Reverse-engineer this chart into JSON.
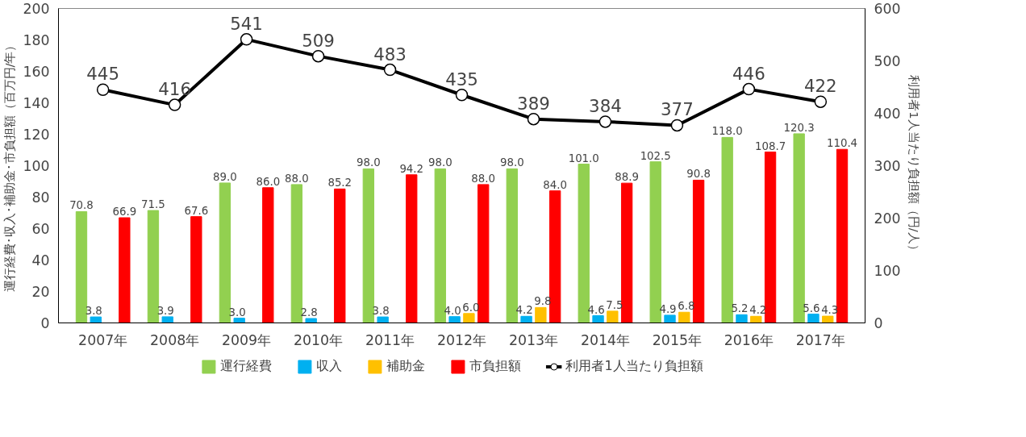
{
  "chart_data": {
    "type": "bar",
    "ylabel": "運行経費･収入･補助金･市負担額（百万円/年）",
    "y2label": "利用者1人当たり負担額（円/人）",
    "categories": [
      "2007年",
      "2008年",
      "2009年",
      "2010年",
      "2011年",
      "2012年",
      "2013年",
      "2014年",
      "2015年",
      "2016年",
      "2017年"
    ],
    "series": [
      {
        "name": "運行経費",
        "color": "#92d050",
        "values": [
          70.8,
          71.5,
          89.0,
          88.0,
          98.0,
          98.0,
          98.0,
          101.0,
          102.5,
          118.0,
          120.3
        ],
        "value_labels": [
          "70.8",
          "71.5",
          "89.0",
          "88.0",
          "98.0",
          "98.0",
          "98.0",
          "101.0",
          "102.5",
          "118.0",
          "120.3"
        ]
      },
      {
        "name": "収入",
        "color": "#00b0f0",
        "values": [
          3.8,
          3.9,
          3.0,
          2.8,
          3.8,
          4.0,
          4.2,
          4.6,
          4.9,
          5.2,
          5.6
        ],
        "value_labels": [
          "3.8",
          "3.9",
          "3.0",
          "2.8",
          "3.8",
          "4.0",
          "4.2",
          "4.6",
          "4.9",
          "5.2",
          "5.6"
        ]
      },
      {
        "name": "補助金",
        "color": "#ffc000",
        "values": [
          null,
          null,
          null,
          null,
          null,
          6.0,
          9.8,
          7.5,
          6.8,
          4.2,
          4.3
        ],
        "value_labels": [
          null,
          null,
          null,
          null,
          null,
          "6.0",
          "9.8",
          "7.5",
          "6.8",
          "4.2",
          "4.3"
        ]
      },
      {
        "name": "市負担額",
        "color": "#ff0000",
        "values": [
          66.9,
          67.6,
          86.0,
          85.2,
          94.2,
          88.0,
          84.0,
          88.9,
          90.8,
          108.7,
          110.4
        ],
        "value_labels": [
          "66.9",
          "67.6",
          "86.0",
          "85.2",
          "94.2",
          "88.0",
          "84.0",
          "88.9",
          "90.8",
          "108.7",
          "110.4"
        ]
      },
      {
        "name": "利用者1人当たり負担額",
        "type": "line",
        "axis": "y2",
        "color": "#000000",
        "marker": "circle",
        "values": [
          445,
          416,
          541,
          509,
          483,
          435,
          389,
          384,
          377,
          446,
          422
        ]
      }
    ],
    "data_labels": true,
    "ylim": [
      0,
      200
    ],
    "yticks": [
      0,
      20,
      40,
      60,
      80,
      100,
      120,
      140,
      160,
      180,
      200
    ],
    "y2lim": [
      0,
      600
    ],
    "y2ticks": [
      0,
      100,
      200,
      300,
      400,
      500,
      600
    ],
    "grid": false,
    "legend": "bottom",
    "line_style": "solid"
  }
}
